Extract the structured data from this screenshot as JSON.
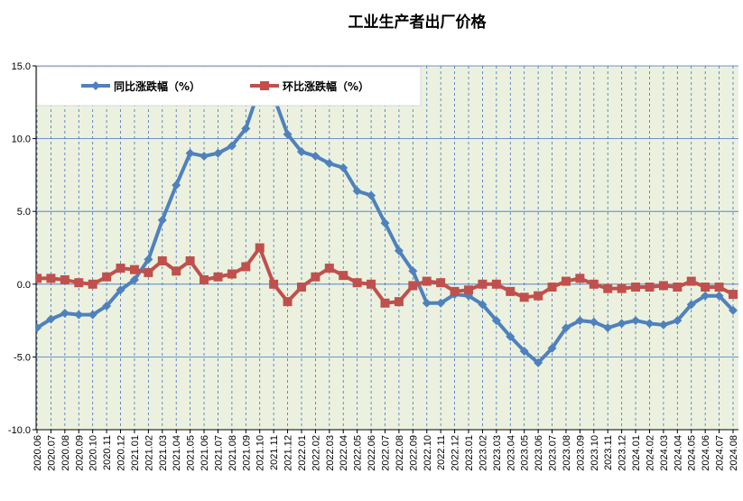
{
  "chart_data": {
    "type": "line",
    "title": "工业生产者出厂价格",
    "xlabel": "",
    "ylabel": "",
    "ylim": [
      -10,
      15
    ],
    "yticks": [
      "15.0",
      "10.0",
      "5.0",
      "0.0",
      "-5.0",
      "-10.0"
    ],
    "grid": "horizontal and vertical dashed",
    "legend_position": "top-left",
    "colors": {
      "plot_bg": "#ebf1de",
      "grid": "#4472c4",
      "series_1": "#4f81bd",
      "series_2": "#c0504d"
    },
    "categories": [
      "2020.06",
      "2020.07",
      "2020.08",
      "2020.09",
      "2020.10",
      "2020.11",
      "2020.12",
      "2021.01",
      "2021.02",
      "2021.03",
      "2021.04",
      "2021.05",
      "2021.06",
      "2021.07",
      "2021.08",
      "2021.09",
      "2021.10",
      "2021.11",
      "2021.12",
      "2022.01",
      "2022.02",
      "2022.03",
      "2022.04",
      "2022.05",
      "2022.06",
      "2022.07",
      "2022.08",
      "2022.09",
      "2022.10",
      "2022.11",
      "2022.12",
      "2023.01",
      "2023.02",
      "2023.03",
      "2023.04",
      "2023.05",
      "2023.06",
      "2023.07",
      "2023.08",
      "2023.09",
      "2023.10",
      "2023.11",
      "2023.12",
      "2024.01",
      "2024.02",
      "2024.03",
      "2024.04",
      "2024.05",
      "2024.06",
      "2024.07",
      "2024.08"
    ],
    "series": [
      {
        "name": "同比涨跌幅（%）",
        "marker": "diamond",
        "values": [
          -3.0,
          -2.4,
          -2.0,
          -2.1,
          -2.1,
          -1.5,
          -0.4,
          0.3,
          1.7,
          4.4,
          6.8,
          9.0,
          8.8,
          9.0,
          9.5,
          10.7,
          13.5,
          12.9,
          10.3,
          9.1,
          8.8,
          8.3,
          8.0,
          6.4,
          6.1,
          4.2,
          2.3,
          0.9,
          -1.3,
          -1.3,
          -0.7,
          -0.8,
          -1.4,
          -2.5,
          -3.6,
          -4.6,
          -5.4,
          -4.4,
          -3.0,
          -2.5,
          -2.6,
          -3.0,
          -2.7,
          -2.5,
          -2.7,
          -2.8,
          -2.5,
          -1.4,
          -0.8,
          -0.8,
          -1.8
        ]
      },
      {
        "name": "环比涨跌幅（%）",
        "marker": "square",
        "values": [
          0.4,
          0.4,
          0.3,
          0.1,
          0.0,
          0.5,
          1.1,
          1.0,
          0.8,
          1.6,
          0.9,
          1.6,
          0.3,
          0.5,
          0.7,
          1.2,
          2.5,
          0.0,
          -1.2,
          -0.2,
          0.5,
          1.1,
          0.6,
          0.1,
          0.0,
          -1.3,
          -1.2,
          -0.1,
          0.2,
          0.1,
          -0.5,
          -0.4,
          0.0,
          0.0,
          -0.5,
          -0.9,
          -0.8,
          -0.2,
          0.2,
          0.4,
          0.0,
          -0.3,
          -0.3,
          -0.2,
          -0.2,
          -0.1,
          -0.2,
          0.2,
          -0.2,
          -0.2,
          -0.7
        ]
      }
    ]
  }
}
